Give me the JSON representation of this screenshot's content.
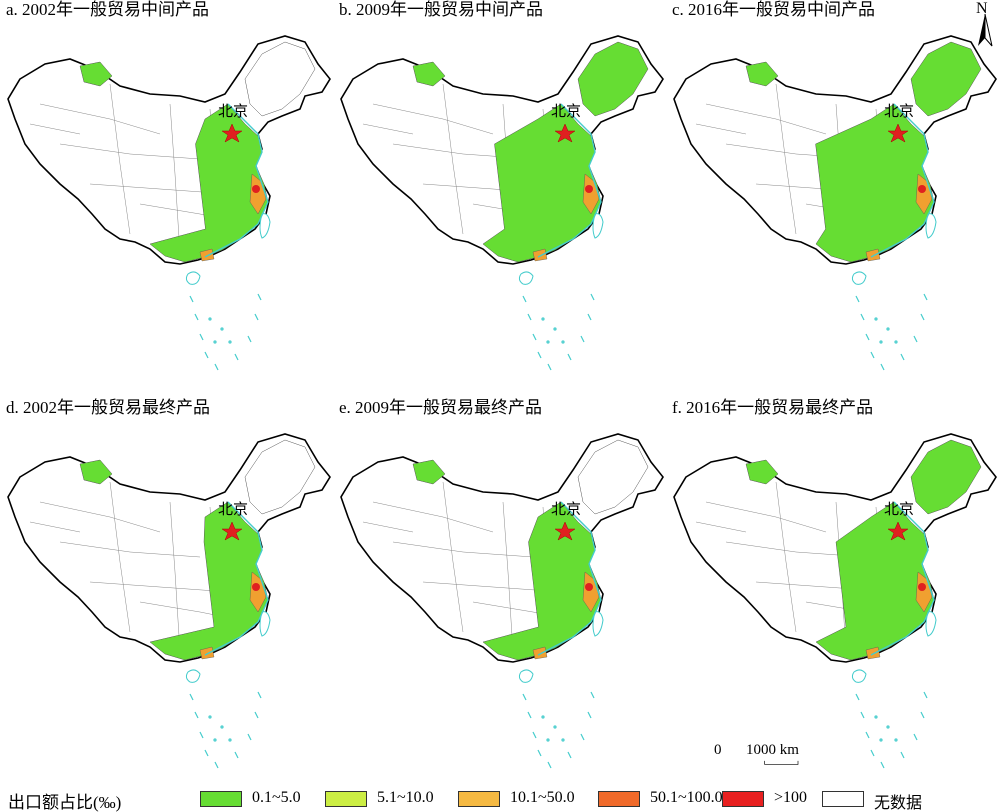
{
  "panels": [
    {
      "title": "a. 2002年一般贸易中间产品",
      "capital": "北京",
      "province_fill": "#66dd33",
      "coast_fill": "#f0a030",
      "hot_fill": "#e02020",
      "coverage": 0.35
    },
    {
      "title": "b. 2009年一般贸易中间产品",
      "capital": "北京",
      "province_fill": "#66dd33",
      "coast_fill": "#f0a030",
      "hot_fill": "#e02020",
      "coverage": 0.55
    },
    {
      "title": "c. 2016年一般贸易中间产品",
      "capital": "北京",
      "province_fill": "#66dd33",
      "coast_fill": "#f0a030",
      "hot_fill": "#e02020",
      "coverage": 0.62
    },
    {
      "title": "d. 2002年一般贸易最终产品",
      "capital": "北京",
      "province_fill": "#66dd33",
      "coast_fill": "#f0a030",
      "hot_fill": "#e02020",
      "coverage": 0.3
    },
    {
      "title": "e. 2009年一般贸易最终产品",
      "capital": "北京",
      "province_fill": "#66dd33",
      "coast_fill": "#f0a030",
      "hot_fill": "#e02020",
      "coverage": 0.35
    },
    {
      "title": "f. 2016年一般贸易最终产品",
      "capital": "北京",
      "province_fill": "#66dd33",
      "coast_fill": "#f0a030",
      "hot_fill": "#e02020",
      "coverage": 0.5
    }
  ],
  "north_arrow": {
    "label": "N"
  },
  "scale_bar": {
    "zero": "0",
    "distance": "1000 km"
  },
  "legend": {
    "title": "出口额占比(‰)",
    "items": [
      {
        "label": "0.1~5.0",
        "color": "#66dd33"
      },
      {
        "label": "5.1~10.0",
        "color": "#ccee44"
      },
      {
        "label": "10.1~50.0",
        "color": "#f5b942"
      },
      {
        "label": "50.1~100.0",
        "color": "#f06a2a"
      },
      {
        "label": ">100",
        "color": "#e82020"
      },
      {
        "label": "无数据",
        "color": "#ffffff"
      }
    ]
  }
}
